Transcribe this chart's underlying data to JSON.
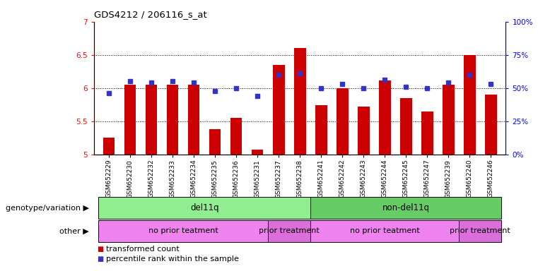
{
  "title": "GDS4212 / 206116_s_at",
  "samples": [
    "GSM652229",
    "GSM652230",
    "GSM652232",
    "GSM652233",
    "GSM652234",
    "GSM652235",
    "GSM652236",
    "GSM652231",
    "GSM652237",
    "GSM652238",
    "GSM652241",
    "GSM652242",
    "GSM652243",
    "GSM652244",
    "GSM652245",
    "GSM652247",
    "GSM652239",
    "GSM652240",
    "GSM652246"
  ],
  "red_values": [
    5.25,
    6.05,
    6.05,
    6.05,
    6.05,
    5.38,
    5.55,
    5.07,
    6.35,
    6.6,
    5.74,
    6.0,
    5.72,
    6.12,
    5.85,
    5.65,
    6.05,
    6.5,
    5.9
  ],
  "blue_values": [
    5.92,
    6.1,
    6.08,
    6.1,
    6.08,
    5.96,
    6.0,
    5.88,
    6.2,
    6.22,
    6.0,
    6.06,
    6.0,
    6.13,
    6.02,
    6.0,
    6.08,
    6.2,
    6.06
  ],
  "ylim_left": [
    5.0,
    7.0
  ],
  "ylim_right": [
    0,
    100
  ],
  "yticks_left": [
    5.0,
    5.5,
    6.0,
    6.5,
    7.0
  ],
  "yticks_right": [
    0,
    25,
    50,
    75,
    100
  ],
  "ytick_labels_right": [
    "0%",
    "25%",
    "50%",
    "75%",
    "100%"
  ],
  "bar_color": "#cc0000",
  "dot_color": "#3333cc",
  "annotations": {
    "genotype_label": "genotype/variation",
    "other_label": "other",
    "del11q_label": "del11q",
    "non_del11q_label": "non-del11q",
    "no_prior1_label": "no prior teatment",
    "prior1_label": "prior treatment",
    "no_prior2_label": "no prior teatment",
    "prior2_label": "prior treatment"
  },
  "del11q_range": [
    0,
    9
  ],
  "non_del11q_range": [
    10,
    18
  ],
  "no_prior1_range": [
    0,
    7
  ],
  "prior1_range": [
    8,
    9
  ],
  "no_prior2_range": [
    10,
    16
  ],
  "prior2_range": [
    17,
    18
  ],
  "legend": {
    "transformed_count": "transformed count",
    "percentile_rank": "percentile rank within the sample"
  },
  "genotype_color_del": "#90ee90",
  "genotype_color_nondel": "#66cc66",
  "other_color_noprior": "#ee82ee",
  "other_color_prior": "#da6fda",
  "bar_width": 0.55,
  "base_value": 5.0
}
